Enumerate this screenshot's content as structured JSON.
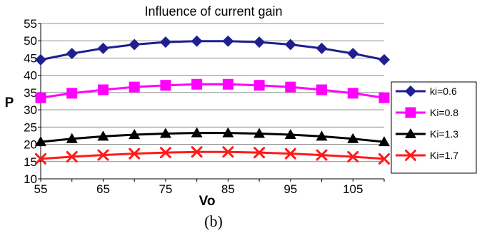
{
  "figure_label": "(b)",
  "chart_data": {
    "type": "line",
    "title": "Influence of current gain",
    "xlabel": "Vo",
    "ylabel": "P",
    "xlim": [
      55,
      110
    ],
    "ylim": [
      10,
      55
    ],
    "x_ticks": [
      "55",
      "65",
      "75",
      "85",
      "95",
      "105"
    ],
    "y_ticks": [
      "10",
      "15",
      "20",
      "25",
      "30",
      "35",
      "40",
      "45",
      "50",
      "55"
    ],
    "grid": true,
    "legend_position": "right",
    "x": [
      55,
      60,
      65,
      70,
      75,
      80,
      85,
      90,
      95,
      100,
      105,
      110
    ],
    "series": [
      {
        "name": "ki=0.6",
        "color": "#1f1f8f",
        "marker": "diamond",
        "values": [
          44.5,
          46.3,
          47.8,
          48.9,
          49.6,
          49.9,
          49.9,
          49.6,
          48.9,
          47.8,
          46.3,
          44.5
        ]
      },
      {
        "name": "Ki=0.8",
        "color": "#ff00ff",
        "marker": "square",
        "values": [
          33.5,
          34.8,
          35.8,
          36.6,
          37.1,
          37.4,
          37.4,
          37.1,
          36.6,
          35.8,
          34.8,
          33.5
        ]
      },
      {
        "name": "Ki=1.3",
        "color": "#000000",
        "marker": "triangle",
        "values": [
          20.7,
          21.6,
          22.3,
          22.8,
          23.1,
          23.3,
          23.3,
          23.1,
          22.8,
          22.3,
          21.6,
          20.7
        ]
      },
      {
        "name": "Ki=1.7",
        "color": "#ff1a1a",
        "marker": "x",
        "values": [
          15.8,
          16.4,
          16.9,
          17.3,
          17.6,
          17.8,
          17.8,
          17.6,
          17.3,
          16.9,
          16.4,
          15.8
        ]
      }
    ]
  }
}
